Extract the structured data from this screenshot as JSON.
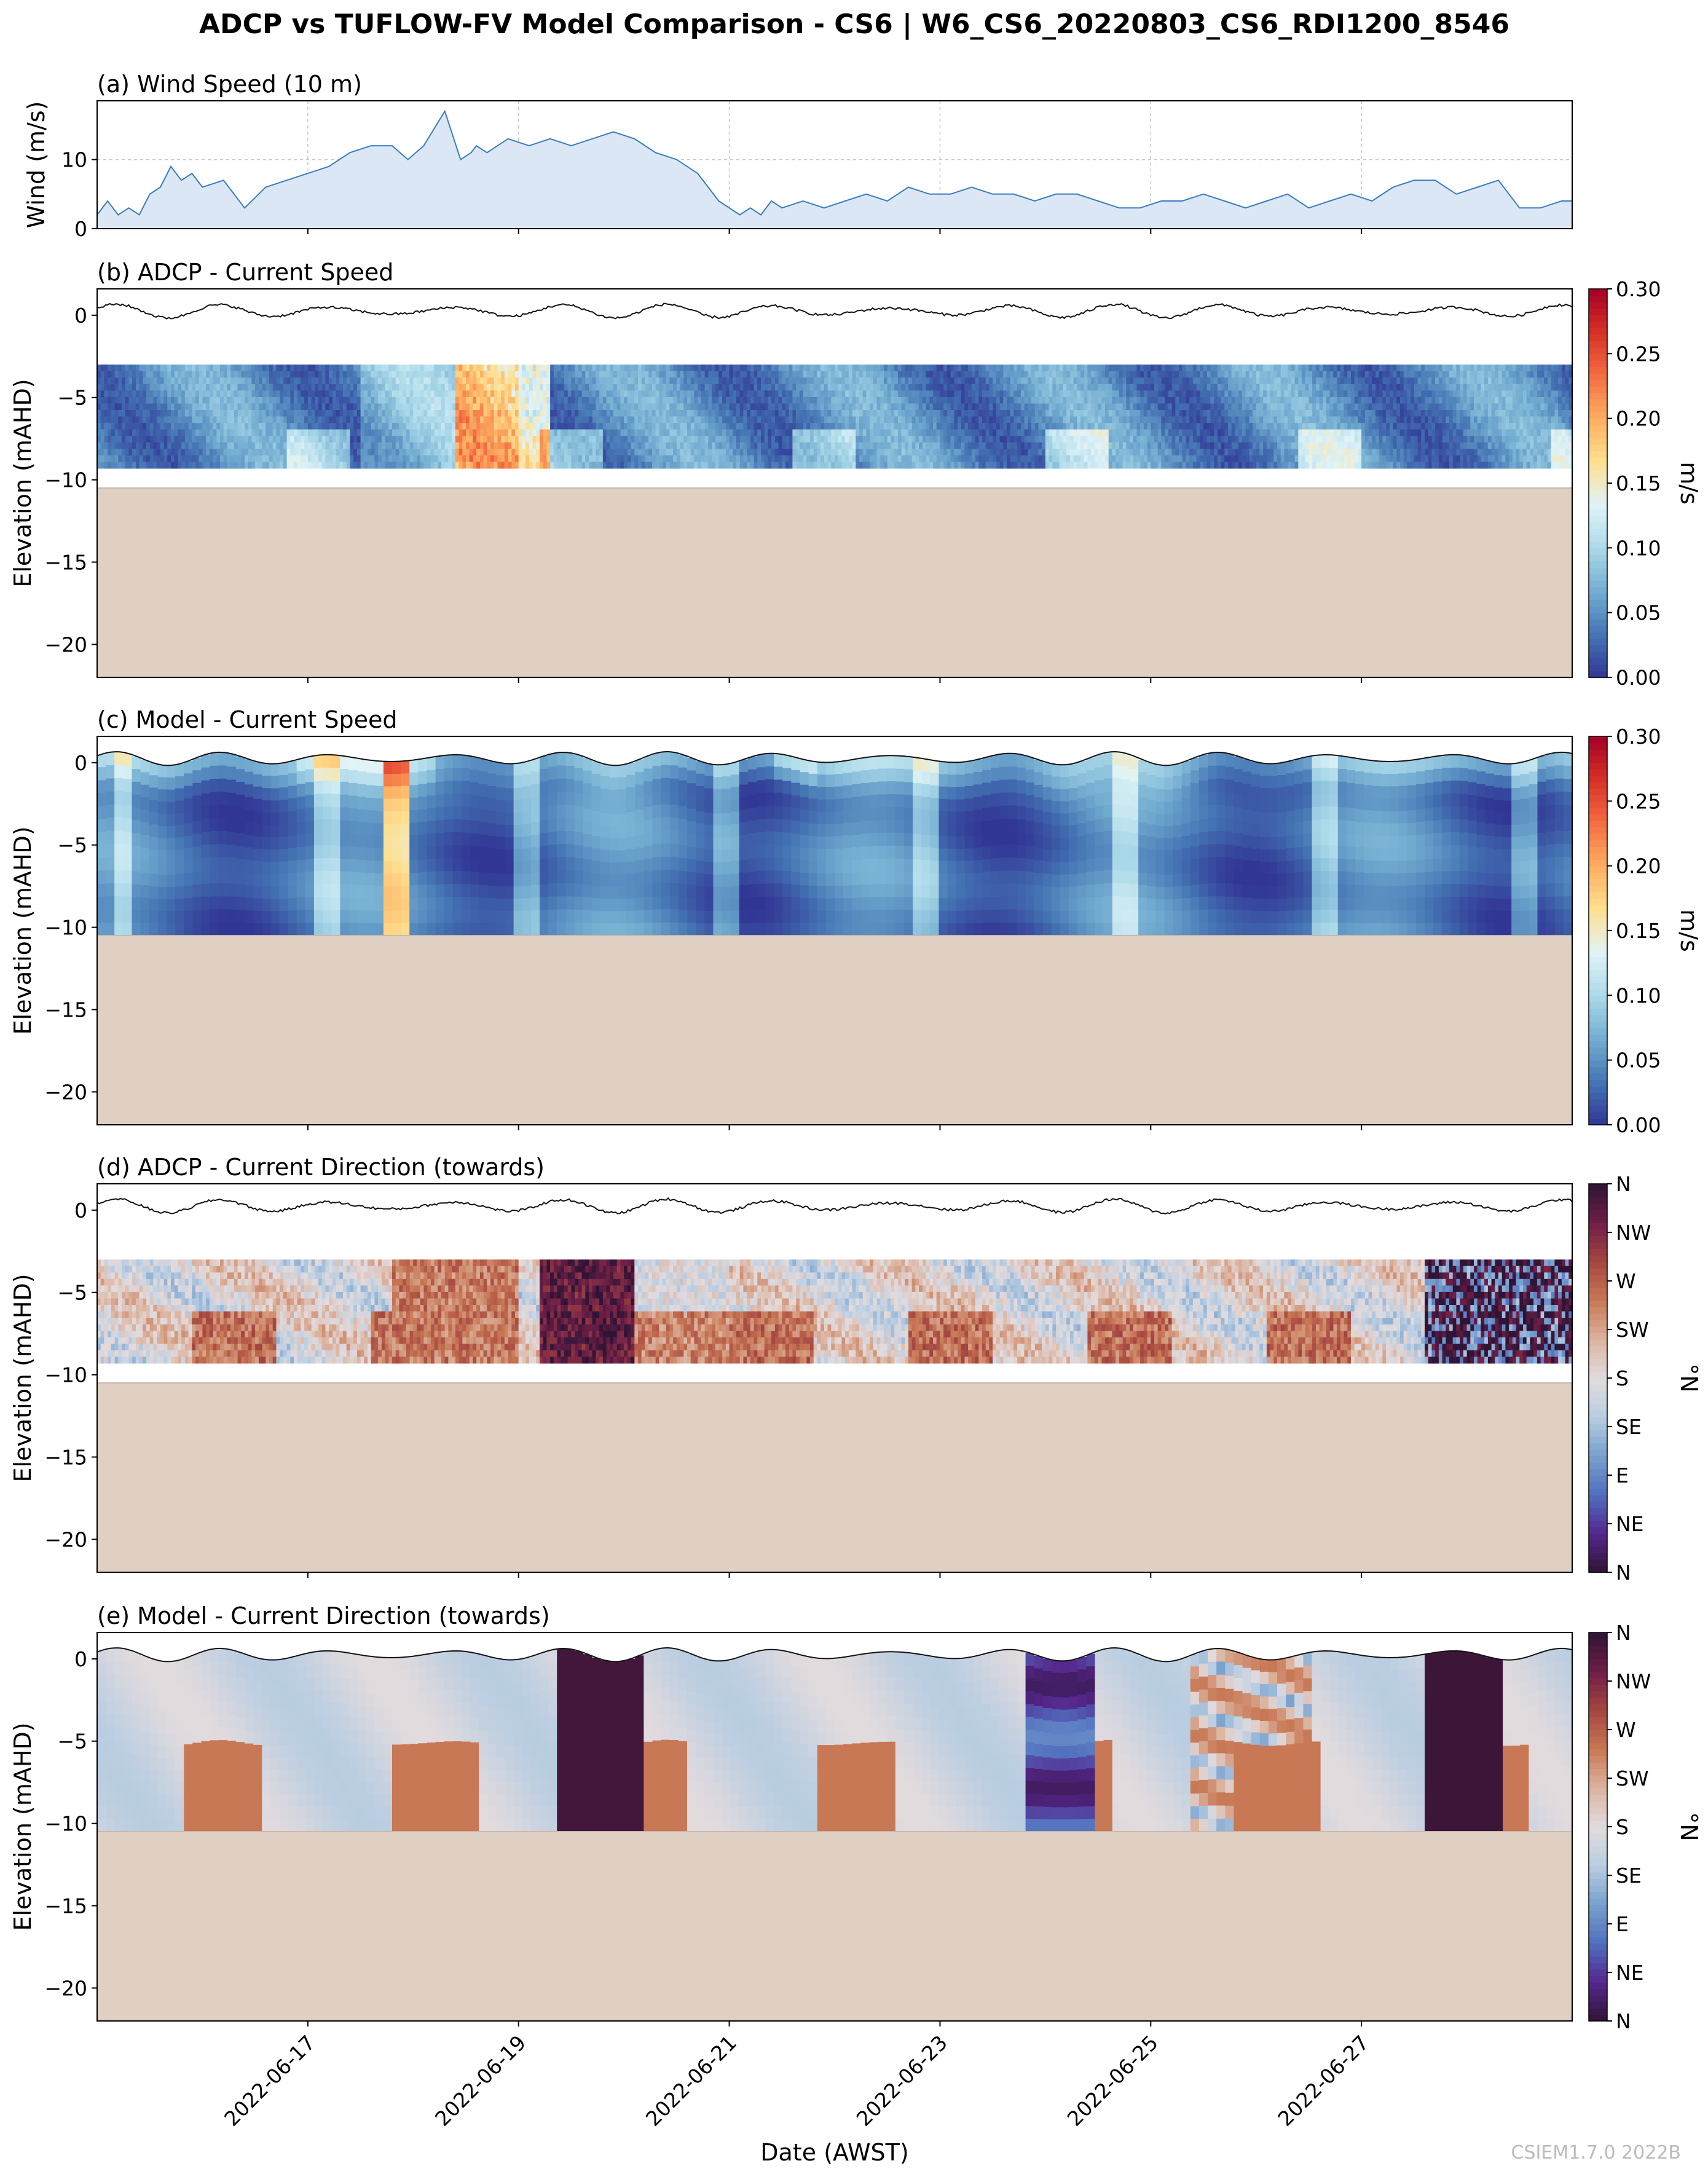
{
  "figure": {
    "title": "ADCP vs TUFLOW-FV Model Comparison - CS6 | W6_CS6_20220803_CS6_RDI1200_8546",
    "watermark": "CSIEM1.7.0 2022B",
    "xlabel": "Date (AWST)",
    "seabed_color": "#e0d0c4"
  },
  "chart_data": [
    {
      "id": "wind",
      "type": "area",
      "title": "(a) Wind Speed (10 m)",
      "ylabel": "Wind (m/s)",
      "ylim": [
        0,
        18.5
      ],
      "yticks": [
        0,
        10
      ],
      "line_color": "#3a7dc0",
      "fill_color": "#dce7f5",
      "x_days": [
        0,
        0.1,
        0.2,
        0.3,
        0.4,
        0.5,
        0.6,
        0.7,
        0.8,
        0.9,
        1.0,
        1.2,
        1.4,
        1.6,
        1.8,
        2.0,
        2.2,
        2.4,
        2.6,
        2.8,
        2.95,
        3.1,
        3.3,
        3.45,
        3.55,
        3.6,
        3.7,
        3.9,
        4.1,
        4.3,
        4.5,
        4.7,
        4.9,
        5.1,
        5.3,
        5.5,
        5.7,
        5.9,
        6.1,
        6.2,
        6.3,
        6.4,
        6.5,
        6.7,
        6.9,
        7.1,
        7.3,
        7.5,
        7.7,
        7.9,
        8.1,
        8.3,
        8.5,
        8.7,
        8.9,
        9.1,
        9.3,
        9.5,
        9.7,
        9.9,
        10.1,
        10.3,
        10.5,
        10.7,
        10.9,
        11.1,
        11.3,
        11.5,
        11.7,
        11.9,
        12.1,
        12.3,
        12.5,
        12.7,
        12.9,
        13.1,
        13.3,
        13.5,
        13.7,
        13.9,
        14.0
      ],
      "values": [
        2,
        4,
        2,
        3,
        2,
        5,
        6,
        9,
        7,
        8,
        6,
        7,
        3,
        6,
        7,
        8,
        9,
        11,
        12,
        12,
        10,
        12,
        17,
        10,
        11,
        12,
        11,
        13,
        12,
        13,
        12,
        13,
        14,
        13,
        11,
        10,
        8,
        4,
        2,
        3,
        2,
        4,
        3,
        4,
        3,
        4,
        5,
        4,
        6,
        5,
        5,
        6,
        5,
        5,
        4,
        5,
        5,
        4,
        3,
        3,
        4,
        4,
        5,
        4,
        3,
        4,
        5,
        3,
        4,
        5,
        4,
        6,
        7,
        7,
        5,
        6,
        7,
        3,
        3,
        4,
        4
      ]
    },
    {
      "id": "adcp_speed",
      "type": "heatmap",
      "title": "(b) ADCP - Current Speed",
      "ylabel": "Elevation (mAHD)",
      "ylim": [
        -22,
        1.6
      ],
      "yticks": [
        0,
        -5,
        -10,
        -15,
        -20
      ],
      "data_top": -3,
      "data_bottom": -9.3,
      "seabed": -10.5,
      "colorbar": {
        "label": "m/s",
        "min": 0,
        "max": 0.3,
        "ticks": [
          "0.00",
          "0.05",
          "0.10",
          "0.15",
          "0.20",
          "0.25",
          "0.30"
        ],
        "cmap": "RdYlBu_r"
      }
    },
    {
      "id": "model_speed",
      "type": "heatmap",
      "title": "(c) Model - Current Speed",
      "ylabel": "Elevation (mAHD)",
      "ylim": [
        -22,
        1.6
      ],
      "yticks": [
        0,
        -5,
        -10,
        -15,
        -20
      ],
      "data_bottom": -10.5,
      "seabed": -10.5,
      "colorbar": {
        "label": "m/s",
        "min": 0,
        "max": 0.3,
        "ticks": [
          "0.00",
          "0.05",
          "0.10",
          "0.15",
          "0.20",
          "0.25",
          "0.30"
        ],
        "cmap": "RdYlBu_r"
      }
    },
    {
      "id": "adcp_dir",
      "type": "heatmap",
      "title": "(d) ADCP - Current Direction (towards)",
      "ylabel": "Elevation (mAHD)",
      "ylim": [
        -22,
        1.6
      ],
      "yticks": [
        0,
        -5,
        -10,
        -15,
        -20
      ],
      "data_top": -3,
      "data_bottom": -9.3,
      "seabed": -10.5,
      "colorbar": {
        "label": "°N",
        "min": 0,
        "max": 360,
        "ticks": [
          "N",
          "NE",
          "E",
          "SE",
          "S",
          "SW",
          "W",
          "NW",
          "N"
        ],
        "cmap": "twilight_shifted"
      }
    },
    {
      "id": "model_dir",
      "type": "heatmap",
      "title": "(e) Model - Current Direction (towards)",
      "ylabel": "Elevation (mAHD)",
      "ylim": [
        -22,
        1.6
      ],
      "yticks": [
        0,
        -5,
        -10,
        -15,
        -20
      ],
      "data_bottom": -10.5,
      "seabed": -10.5,
      "colorbar": {
        "label": "°N",
        "min": 0,
        "max": 360,
        "ticks": [
          "N",
          "NE",
          "E",
          "SE",
          "S",
          "SW",
          "W",
          "NW",
          "N"
        ],
        "cmap": "twilight_shifted"
      }
    }
  ],
  "xaxis": {
    "start": "2022-06-15",
    "span_days": 14,
    "tick_labels": [
      "2022-06-17",
      "2022-06-19",
      "2022-06-21",
      "2022-06-23",
      "2022-06-25",
      "2022-06-27"
    ],
    "tick_days": [
      2,
      4,
      6,
      8,
      10,
      12
    ]
  }
}
